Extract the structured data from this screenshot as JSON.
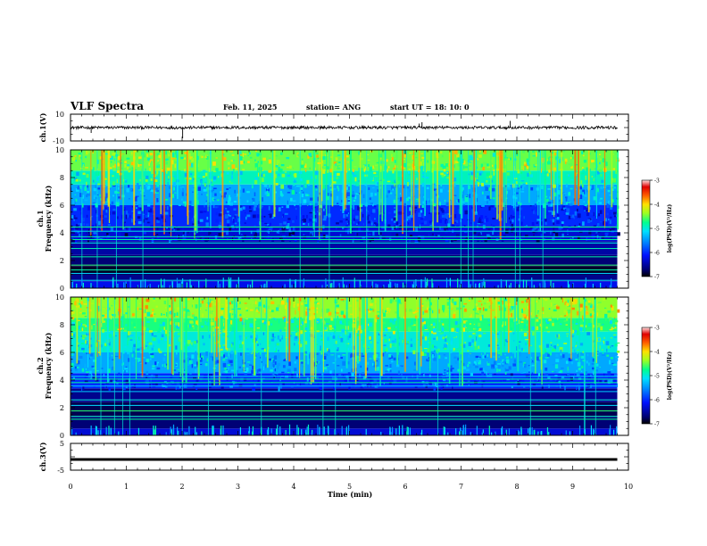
{
  "header": {
    "title": "VLF Spectra",
    "date": "Feb. 11, 2025",
    "station": "station= ANG",
    "start": "start  UT  =   18: 10: 0"
  },
  "colors": {
    "background": "#ffffff",
    "axes": "#000000",
    "colormap": [
      "#000000",
      "#000060",
      "#0000c8",
      "#0050ff",
      "#00c8ff",
      "#00ffa0",
      "#90ff40",
      "#f0ff00",
      "#ff9000",
      "#ff0000",
      "#ffffff"
    ]
  },
  "chart_data": [
    {
      "type": "line",
      "panel": "waveform-ch1",
      "ylabel": "ch.1(V)",
      "xlim": [
        0,
        10
      ],
      "ylim": [
        -10,
        10
      ],
      "yticks": [
        "10",
        "-10"
      ],
      "series": [
        {
          "x": [
            0,
            9.8
          ],
          "values": [
            0,
            0
          ]
        }
      ],
      "notes": "noisy waveform around 0 V with occasional spikes near x=0.35, 2.0, 6.2, 7.9"
    },
    {
      "type": "heatmap",
      "panel": "spectrogram-ch1",
      "ylabel": "ch.1\nFrequency  (kHz)",
      "xlim": [
        0,
        10
      ],
      "ylim": [
        0,
        10
      ],
      "yticks": [
        "0",
        "2",
        "4",
        "6",
        "8",
        "10"
      ],
      "data_extent_x": [
        0,
        9.8
      ],
      "colorbar": {
        "label": "log(PSD)(V²/Hz)",
        "range": [
          -7,
          -3
        ],
        "ticks": [
          "-3",
          "-4",
          "-5",
          "-6",
          "-7"
        ]
      },
      "profile": [
        [
          0,
          0.5,
          -6.2
        ],
        [
          0.5,
          1.0,
          -6.6
        ],
        [
          1.0,
          1.6,
          -6.9
        ],
        [
          1.6,
          2.4,
          -6.7
        ],
        [
          2.4,
          3.4,
          -6.5
        ],
        [
          3.4,
          4.5,
          -6.3
        ],
        [
          4.5,
          6.0,
          -6.0
        ],
        [
          6.0,
          7.5,
          -5.4
        ],
        [
          7.5,
          8.5,
          -4.9
        ],
        [
          8.5,
          10.0,
          -4.5
        ]
      ],
      "tones_khz": [
        0.6,
        1.1,
        1.35,
        1.7,
        2.3,
        2.9,
        3.3,
        3.55,
        3.75,
        4.15,
        4.45
      ]
    },
    {
      "type": "heatmap",
      "panel": "spectrogram-ch2",
      "ylabel": "ch.2\nFrequency  (kHz)",
      "xlim": [
        0,
        10
      ],
      "ylim": [
        0,
        10
      ],
      "yticks": [
        "0",
        "2",
        "4",
        "6",
        "8",
        "10"
      ],
      "data_extent_x": [
        0,
        9.8
      ],
      "colorbar": {
        "label": "log(PSD)(V²/Hz)",
        "range": [
          -7,
          -3
        ],
        "ticks": [
          "-3",
          "-4",
          "-5",
          "-6",
          "-7"
        ]
      },
      "profile": [
        [
          0,
          0.5,
          -6.3
        ],
        [
          0.5,
          1.4,
          -6.7
        ],
        [
          1.4,
          2.4,
          -6.8
        ],
        [
          2.4,
          3.4,
          -6.6
        ],
        [
          3.4,
          4.5,
          -6.0
        ],
        [
          4.5,
          6.0,
          -5.4
        ],
        [
          6.0,
          7.5,
          -5.0
        ],
        [
          7.5,
          8.5,
          -4.7
        ],
        [
          8.5,
          10.0,
          -4.4
        ]
      ],
      "tones_khz": [
        1.2,
        1.4,
        1.8,
        2.2,
        2.6,
        3.2,
        3.6,
        3.85,
        4.1,
        4.3
      ]
    },
    {
      "type": "line",
      "panel": "waveform-ch3",
      "ylabel": "ch.3(V)",
      "xlim": [
        0,
        10
      ],
      "ylim": [
        -5,
        5
      ],
      "yticks": [
        "5",
        "-5"
      ],
      "series": [
        {
          "x": [
            0,
            9.8
          ],
          "values": [
            -1,
            -1
          ]
        }
      ]
    }
  ],
  "xaxis": {
    "label": "Time  (min)",
    "ticks": [
      "0",
      "1",
      "2",
      "3",
      "4",
      "5",
      "6",
      "7",
      "8",
      "9",
      "10"
    ]
  }
}
